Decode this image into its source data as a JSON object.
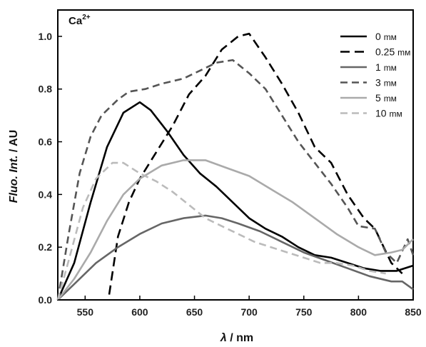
{
  "chart_data": {
    "type": "line",
    "annotation": "Ca",
    "annotation_sup": "2+",
    "ylabel_italic": "Fluo. Int.",
    "ylabel_rest": " / AU",
    "xlabel_italic": "λ",
    "xlabel_rest": " / nm",
    "xlim": [
      525,
      850
    ],
    "ylim": [
      0.0,
      1.1
    ],
    "xticks": [
      550,
      600,
      650,
      700,
      750,
      800,
      850
    ],
    "yticks": [
      0.0,
      0.2,
      0.4,
      0.6,
      0.8,
      1.0
    ],
    "xtick_labels": [
      "550",
      "600",
      "650",
      "700",
      "750",
      "800",
      "850"
    ],
    "ytick_labels": [
      "0.0",
      "0.2",
      "0.4",
      "0.6",
      "0.8",
      "1.0"
    ],
    "legend_position": "top-right",
    "series": [
      {
        "name": "0 mm",
        "legend": {
          "value": "0",
          "unit": "mм"
        },
        "color": "#000000",
        "dash": "solid",
        "x": [
          525,
          540,
          555,
          570,
          585,
          600,
          610,
          625,
          640,
          655,
          670,
          685,
          700,
          715,
          730,
          745,
          760,
          775,
          790,
          805,
          820,
          835,
          850
        ],
        "y": [
          0.0,
          0.14,
          0.37,
          0.58,
          0.71,
          0.75,
          0.72,
          0.64,
          0.55,
          0.48,
          0.43,
          0.37,
          0.31,
          0.27,
          0.24,
          0.2,
          0.17,
          0.16,
          0.14,
          0.12,
          0.11,
          0.11,
          0.13
        ]
      },
      {
        "name": "0.25 mm",
        "legend": {
          "value": "0.25",
          "unit": "mм"
        },
        "color": "#000000",
        "dash": "long",
        "x": [
          572,
          580,
          590,
          600,
          615,
          630,
          645,
          660,
          675,
          690,
          700,
          715,
          730,
          745,
          760,
          775,
          790,
          805,
          815,
          830,
          840
        ],
        "y": [
          0.02,
          0.24,
          0.37,
          0.46,
          0.56,
          0.66,
          0.78,
          0.85,
          0.95,
          1.0,
          1.01,
          0.92,
          0.82,
          0.71,
          0.58,
          0.52,
          0.4,
          0.31,
          0.27,
          0.14,
          0.1
        ]
      },
      {
        "name": "1 mm",
        "legend": {
          "value": "1",
          "unit": "mм"
        },
        "color": "#666666",
        "dash": "solid",
        "x": [
          525,
          540,
          560,
          580,
          600,
          620,
          640,
          660,
          675,
          690,
          710,
          730,
          750,
          770,
          790,
          810,
          830,
          840,
          850
        ],
        "y": [
          0.0,
          0.06,
          0.14,
          0.2,
          0.25,
          0.29,
          0.31,
          0.32,
          0.31,
          0.29,
          0.26,
          0.22,
          0.18,
          0.15,
          0.12,
          0.09,
          0.07,
          0.07,
          0.04
        ]
      },
      {
        "name": "3 mm",
        "legend": {
          "value": "3",
          "unit": "mм"
        },
        "color": "#555555",
        "dash": "medium",
        "x": [
          525,
          535,
          545,
          555,
          565,
          580,
          590,
          605,
          620,
          640,
          655,
          670,
          685,
          700,
          715,
          730,
          745,
          760,
          775,
          790,
          800,
          815,
          825,
          835,
          845,
          850
        ],
        "y": [
          0.0,
          0.25,
          0.48,
          0.62,
          0.7,
          0.76,
          0.79,
          0.8,
          0.82,
          0.84,
          0.87,
          0.9,
          0.91,
          0.86,
          0.8,
          0.7,
          0.6,
          0.52,
          0.44,
          0.35,
          0.28,
          0.27,
          0.18,
          0.14,
          0.23,
          0.17
        ]
      },
      {
        "name": "5 mm",
        "legend": {
          "value": "5",
          "unit": "mм"
        },
        "color": "#aaaaaa",
        "dash": "solid",
        "x": [
          525,
          540,
          555,
          570,
          585,
          600,
          620,
          640,
          660,
          680,
          700,
          720,
          740,
          760,
          780,
          800,
          815,
          830,
          840,
          850
        ],
        "y": [
          0.0,
          0.08,
          0.18,
          0.3,
          0.4,
          0.46,
          0.51,
          0.53,
          0.53,
          0.5,
          0.47,
          0.42,
          0.37,
          0.31,
          0.25,
          0.2,
          0.17,
          0.18,
          0.19,
          0.23
        ]
      },
      {
        "name": "10 mm",
        "legend": {
          "value": "10",
          "unit": "mм"
        },
        "color": "#bbbbbb",
        "dash": "medium",
        "x": [
          525,
          535,
          548,
          560,
          575,
          585,
          600,
          615,
          630,
          645,
          660,
          675,
          690,
          705,
          720,
          735,
          750,
          765,
          780,
          795,
          810,
          825
        ],
        "y": [
          0.0,
          0.15,
          0.35,
          0.46,
          0.52,
          0.52,
          0.48,
          0.45,
          0.41,
          0.36,
          0.31,
          0.28,
          0.25,
          0.22,
          0.2,
          0.18,
          0.16,
          0.14,
          0.14,
          0.13,
          0.11,
          0.1
        ]
      }
    ]
  }
}
